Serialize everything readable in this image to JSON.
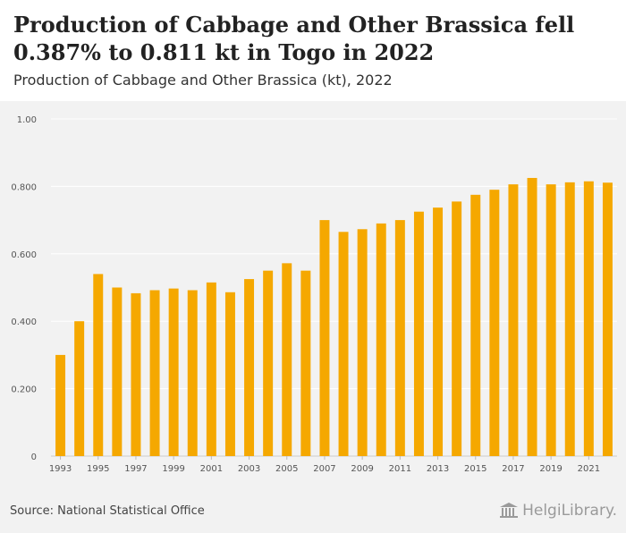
{
  "title": "Production of Cabbage and Other Brassica fell 0.387% to 0.811 kt in Togo in 2022",
  "subtitle": "Production of Cabbage and Other Brassica (kt), 2022",
  "source": "Source: National Statistical Office",
  "logo": {
    "text": "HelgiLibrary."
  },
  "colors": {
    "bar": "#f5a800",
    "background": "#f2f2f2",
    "grid": "#ffffff",
    "axis_text": "#555555"
  },
  "chart_data": {
    "type": "bar",
    "categories": [
      "1993",
      "1994",
      "1995",
      "1996",
      "1997",
      "1998",
      "1999",
      "2000",
      "2001",
      "2002",
      "2003",
      "2004",
      "2005",
      "2006",
      "2007",
      "2008",
      "2009",
      "2010",
      "2011",
      "2012",
      "2013",
      "2014",
      "2015",
      "2016",
      "2017",
      "2018",
      "2019",
      "2020",
      "2021",
      "2022"
    ],
    "values": [
      0.3,
      0.4,
      0.54,
      0.5,
      0.483,
      0.492,
      0.497,
      0.492,
      0.515,
      0.486,
      0.525,
      0.55,
      0.572,
      0.55,
      0.7,
      0.665,
      0.673,
      0.69,
      0.7,
      0.725,
      0.737,
      0.755,
      0.775,
      0.79,
      0.806,
      0.825,
      0.806,
      0.812,
      0.815,
      0.811
    ],
    "ylim": [
      0,
      1.0
    ],
    "yticks": [
      0,
      0.2,
      0.4,
      0.6,
      0.8,
      1.0
    ],
    "ytick_labels": [
      "0",
      "0.200",
      "0.400",
      "0.600",
      "0.800",
      "1.00"
    ],
    "xtick_labels": [
      "1993",
      "1995",
      "1997",
      "1999",
      "2001",
      "2003",
      "2005",
      "2007",
      "2009",
      "2011",
      "2013",
      "2015",
      "2017",
      "2019",
      "2021"
    ],
    "grid": true
  }
}
